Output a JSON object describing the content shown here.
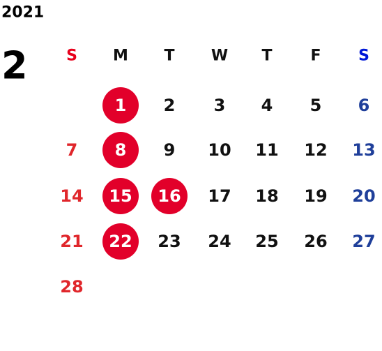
{
  "year": "2021",
  "month": "2",
  "weekdays": [
    "S",
    "M",
    "T",
    "W",
    "T",
    "F",
    "S"
  ],
  "weeks": [
    [
      null,
      {
        "day": "1",
        "highlight": true
      },
      {
        "day": "2"
      },
      {
        "day": "3"
      },
      {
        "day": "4"
      },
      {
        "day": "5"
      },
      {
        "day": "6"
      }
    ],
    [
      {
        "day": "7"
      },
      {
        "day": "8",
        "highlight": true
      },
      {
        "day": "9"
      },
      {
        "day": "10"
      },
      {
        "day": "11"
      },
      {
        "day": "12"
      },
      {
        "day": "13"
      }
    ],
    [
      {
        "day": "14"
      },
      {
        "day": "15",
        "highlight": true
      },
      {
        "day": "16",
        "highlight": true
      },
      {
        "day": "17"
      },
      {
        "day": "18"
      },
      {
        "day": "19"
      },
      {
        "day": "20"
      }
    ],
    [
      {
        "day": "21"
      },
      {
        "day": "22",
        "highlight": true
      },
      {
        "day": "23"
      },
      {
        "day": "24"
      },
      {
        "day": "25"
      },
      {
        "day": "26"
      },
      {
        "day": "27"
      }
    ],
    [
      {
        "day": "28"
      },
      null,
      null,
      null,
      null,
      null,
      null
    ]
  ]
}
